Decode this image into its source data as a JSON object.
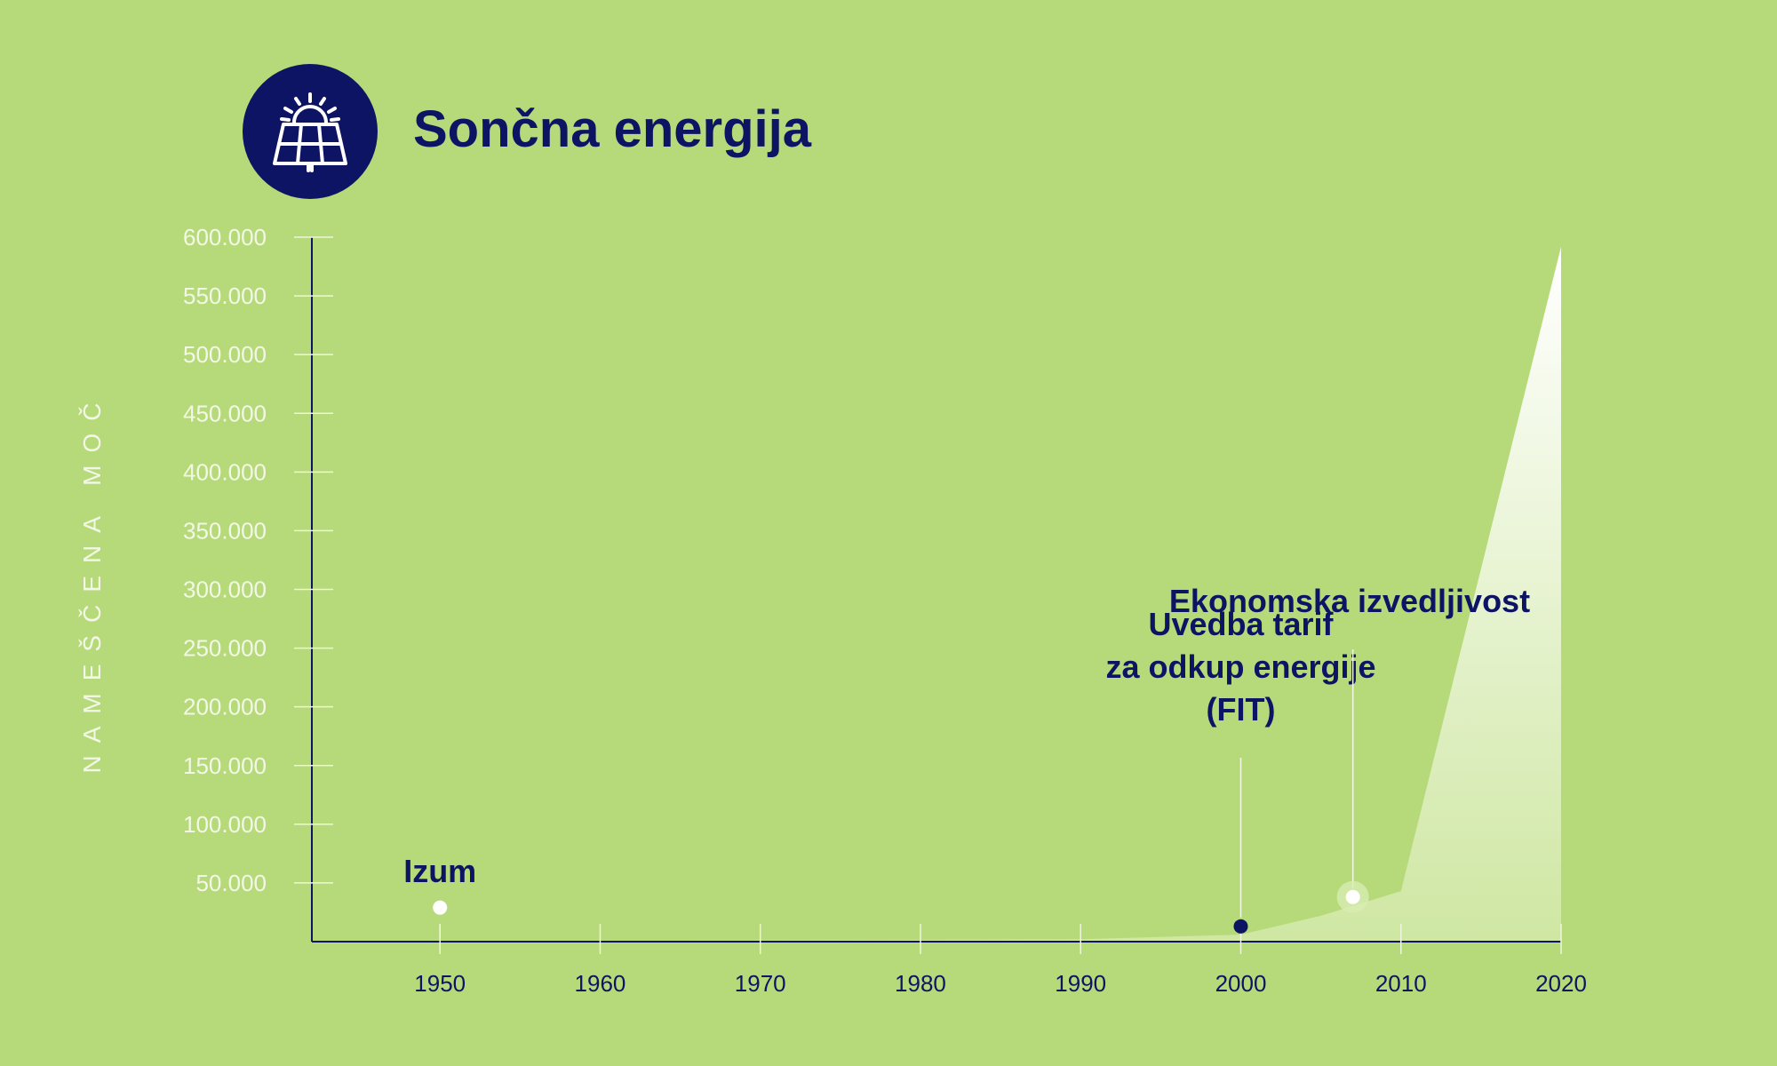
{
  "header": {
    "title": "Sončna energija",
    "icon": "solar-panel-icon"
  },
  "colors": {
    "background": "#b6da79",
    "navy": "#0e1464",
    "axis_text_light": "#f3f8e6",
    "area_top": "#ffffff",
    "area_bottom": "#cfe7a3"
  },
  "chart_data": {
    "type": "area",
    "title": "Sončna energija",
    "xlabel": "",
    "ylabel": "NAMEŠČENA MOČ",
    "xlim": [
      1942,
      2020
    ],
    "ylim": [
      0,
      600000
    ],
    "x_ticks": [
      1950,
      1960,
      1970,
      1980,
      1990,
      2000,
      2010,
      2020
    ],
    "x_tick_labels": [
      "1950",
      "1960",
      "1970",
      "1980",
      "1990",
      "2000",
      "2010",
      "2020"
    ],
    "y_ticks": [
      50000,
      100000,
      150000,
      200000,
      250000,
      300000,
      350000,
      400000,
      450000,
      500000,
      550000,
      600000
    ],
    "y_tick_labels": [
      "50.000",
      "100.000",
      "150.000",
      "200.000",
      "250.000",
      "300.000",
      "350.000",
      "400.000",
      "450.000",
      "500.000",
      "550.000",
      "600.000"
    ],
    "series": [
      {
        "name": "Nameščena moč",
        "x": [
          1950,
          1990,
          2000,
          2005,
          2010,
          2020
        ],
        "y": [
          0,
          2000,
          6000,
          22000,
          43000,
          592000
        ]
      }
    ],
    "annotations": [
      {
        "id": "izum",
        "label": [
          "Izum"
        ],
        "x": 1950,
        "y": 29000,
        "marker": "light"
      },
      {
        "id": "fit",
        "label": [
          "Uvedba tarif",
          "za odkup energije",
          "(FIT)"
        ],
        "x": 2000,
        "y": 13000,
        "marker": "dark"
      },
      {
        "id": "econ",
        "label": [
          "Ekonomska izvedljivost"
        ],
        "x": 2007,
        "y": 38000,
        "marker": "light"
      }
    ]
  }
}
